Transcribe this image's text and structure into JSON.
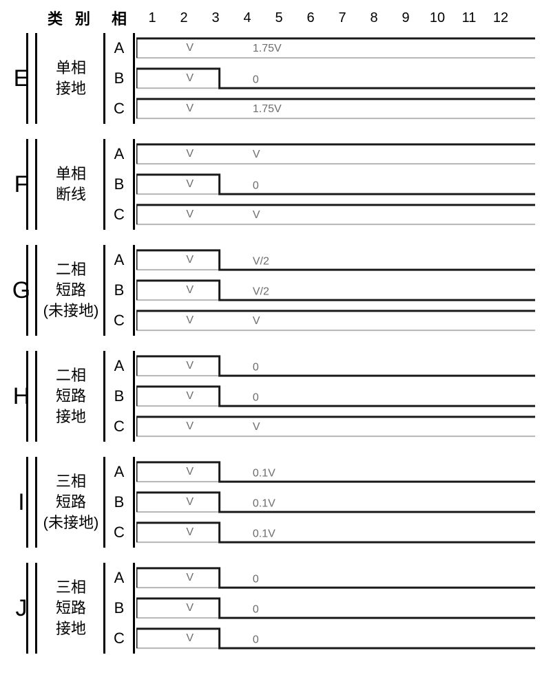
{
  "header": {
    "category": "类 别",
    "phase": "相",
    "numbers": [
      "1",
      "2",
      "3",
      "4",
      "5",
      "6",
      "7",
      "8",
      "9",
      "10",
      "11",
      "12"
    ]
  },
  "style": {
    "color_pre": "#1a1a1a",
    "color_post": "#1a1a1a",
    "color_base": "#b5b5b5",
    "color_text": "#6d6d6d",
    "line_width": 3,
    "base_width": 2,
    "units_total": 12,
    "step_at": 3,
    "y_high": 0.18,
    "y_low": 0.82,
    "label1_at": 2.0,
    "label2_at": 4.0
  },
  "groups": [
    {
      "letter": "E",
      "category": [
        "单相",
        "接地"
      ],
      "rows": [
        {
          "phase": "A",
          "pre_level": "high",
          "post_level": "high",
          "flat": true,
          "label1": "V",
          "label2": "1.75V"
        },
        {
          "phase": "B",
          "pre_level": "high",
          "post_level": "low",
          "label1": "V",
          "label2": "0"
        },
        {
          "phase": "C",
          "pre_level": "high",
          "post_level": "high",
          "flat": true,
          "label1": "V",
          "label2": "1.75V"
        }
      ]
    },
    {
      "letter": "F",
      "category": [
        "单相",
        "断线"
      ],
      "rows": [
        {
          "phase": "A",
          "pre_level": "high",
          "post_level": "high",
          "flat": true,
          "label1": "V",
          "label2": "V"
        },
        {
          "phase": "B",
          "pre_level": "high",
          "post_level": "low",
          "label1": "V",
          "label2": "0"
        },
        {
          "phase": "C",
          "pre_level": "high",
          "post_level": "high",
          "flat": true,
          "label1": "V",
          "label2": "V"
        }
      ]
    },
    {
      "letter": "G",
      "category": [
        "二相",
        "短路",
        "(未接地)"
      ],
      "rows": [
        {
          "phase": "A",
          "pre_level": "high",
          "post_level": "low",
          "label1": "V",
          "label2": "V/2"
        },
        {
          "phase": "B",
          "pre_level": "high",
          "post_level": "low",
          "label1": "V",
          "label2": "V/2"
        },
        {
          "phase": "C",
          "pre_level": "high",
          "post_level": "high",
          "flat": true,
          "label1": "V",
          "label2": "V"
        }
      ]
    },
    {
      "letter": "H",
      "category": [
        "二相",
        "短路",
        "接地"
      ],
      "rows": [
        {
          "phase": "A",
          "pre_level": "high",
          "post_level": "low",
          "label1": "V",
          "label2": "0"
        },
        {
          "phase": "B",
          "pre_level": "high",
          "post_level": "low",
          "label1": "V",
          "label2": "0"
        },
        {
          "phase": "C",
          "pre_level": "high",
          "post_level": "high",
          "flat": true,
          "label1": "V",
          "label2": "V"
        }
      ]
    },
    {
      "letter": "I",
      "category": [
        "三相",
        "短路",
        "(未接地)"
      ],
      "rows": [
        {
          "phase": "A",
          "pre_level": "high",
          "post_level": "low",
          "label1": "V",
          "label2": "0.1V"
        },
        {
          "phase": "B",
          "pre_level": "high",
          "post_level": "low",
          "label1": "V",
          "label2": "0.1V"
        },
        {
          "phase": "C",
          "pre_level": "high",
          "post_level": "low",
          "label1": "V",
          "label2": "0.1V"
        }
      ]
    },
    {
      "letter": "J",
      "category": [
        "三相",
        "短路",
        "接地"
      ],
      "rows": [
        {
          "phase": "A",
          "pre_level": "high",
          "post_level": "low",
          "label1": "V",
          "label2": "0"
        },
        {
          "phase": "B",
          "pre_level": "high",
          "post_level": "low",
          "label1": "V",
          "label2": "0"
        },
        {
          "phase": "C",
          "pre_level": "high",
          "post_level": "low",
          "label1": "V",
          "label2": "0"
        }
      ]
    }
  ]
}
